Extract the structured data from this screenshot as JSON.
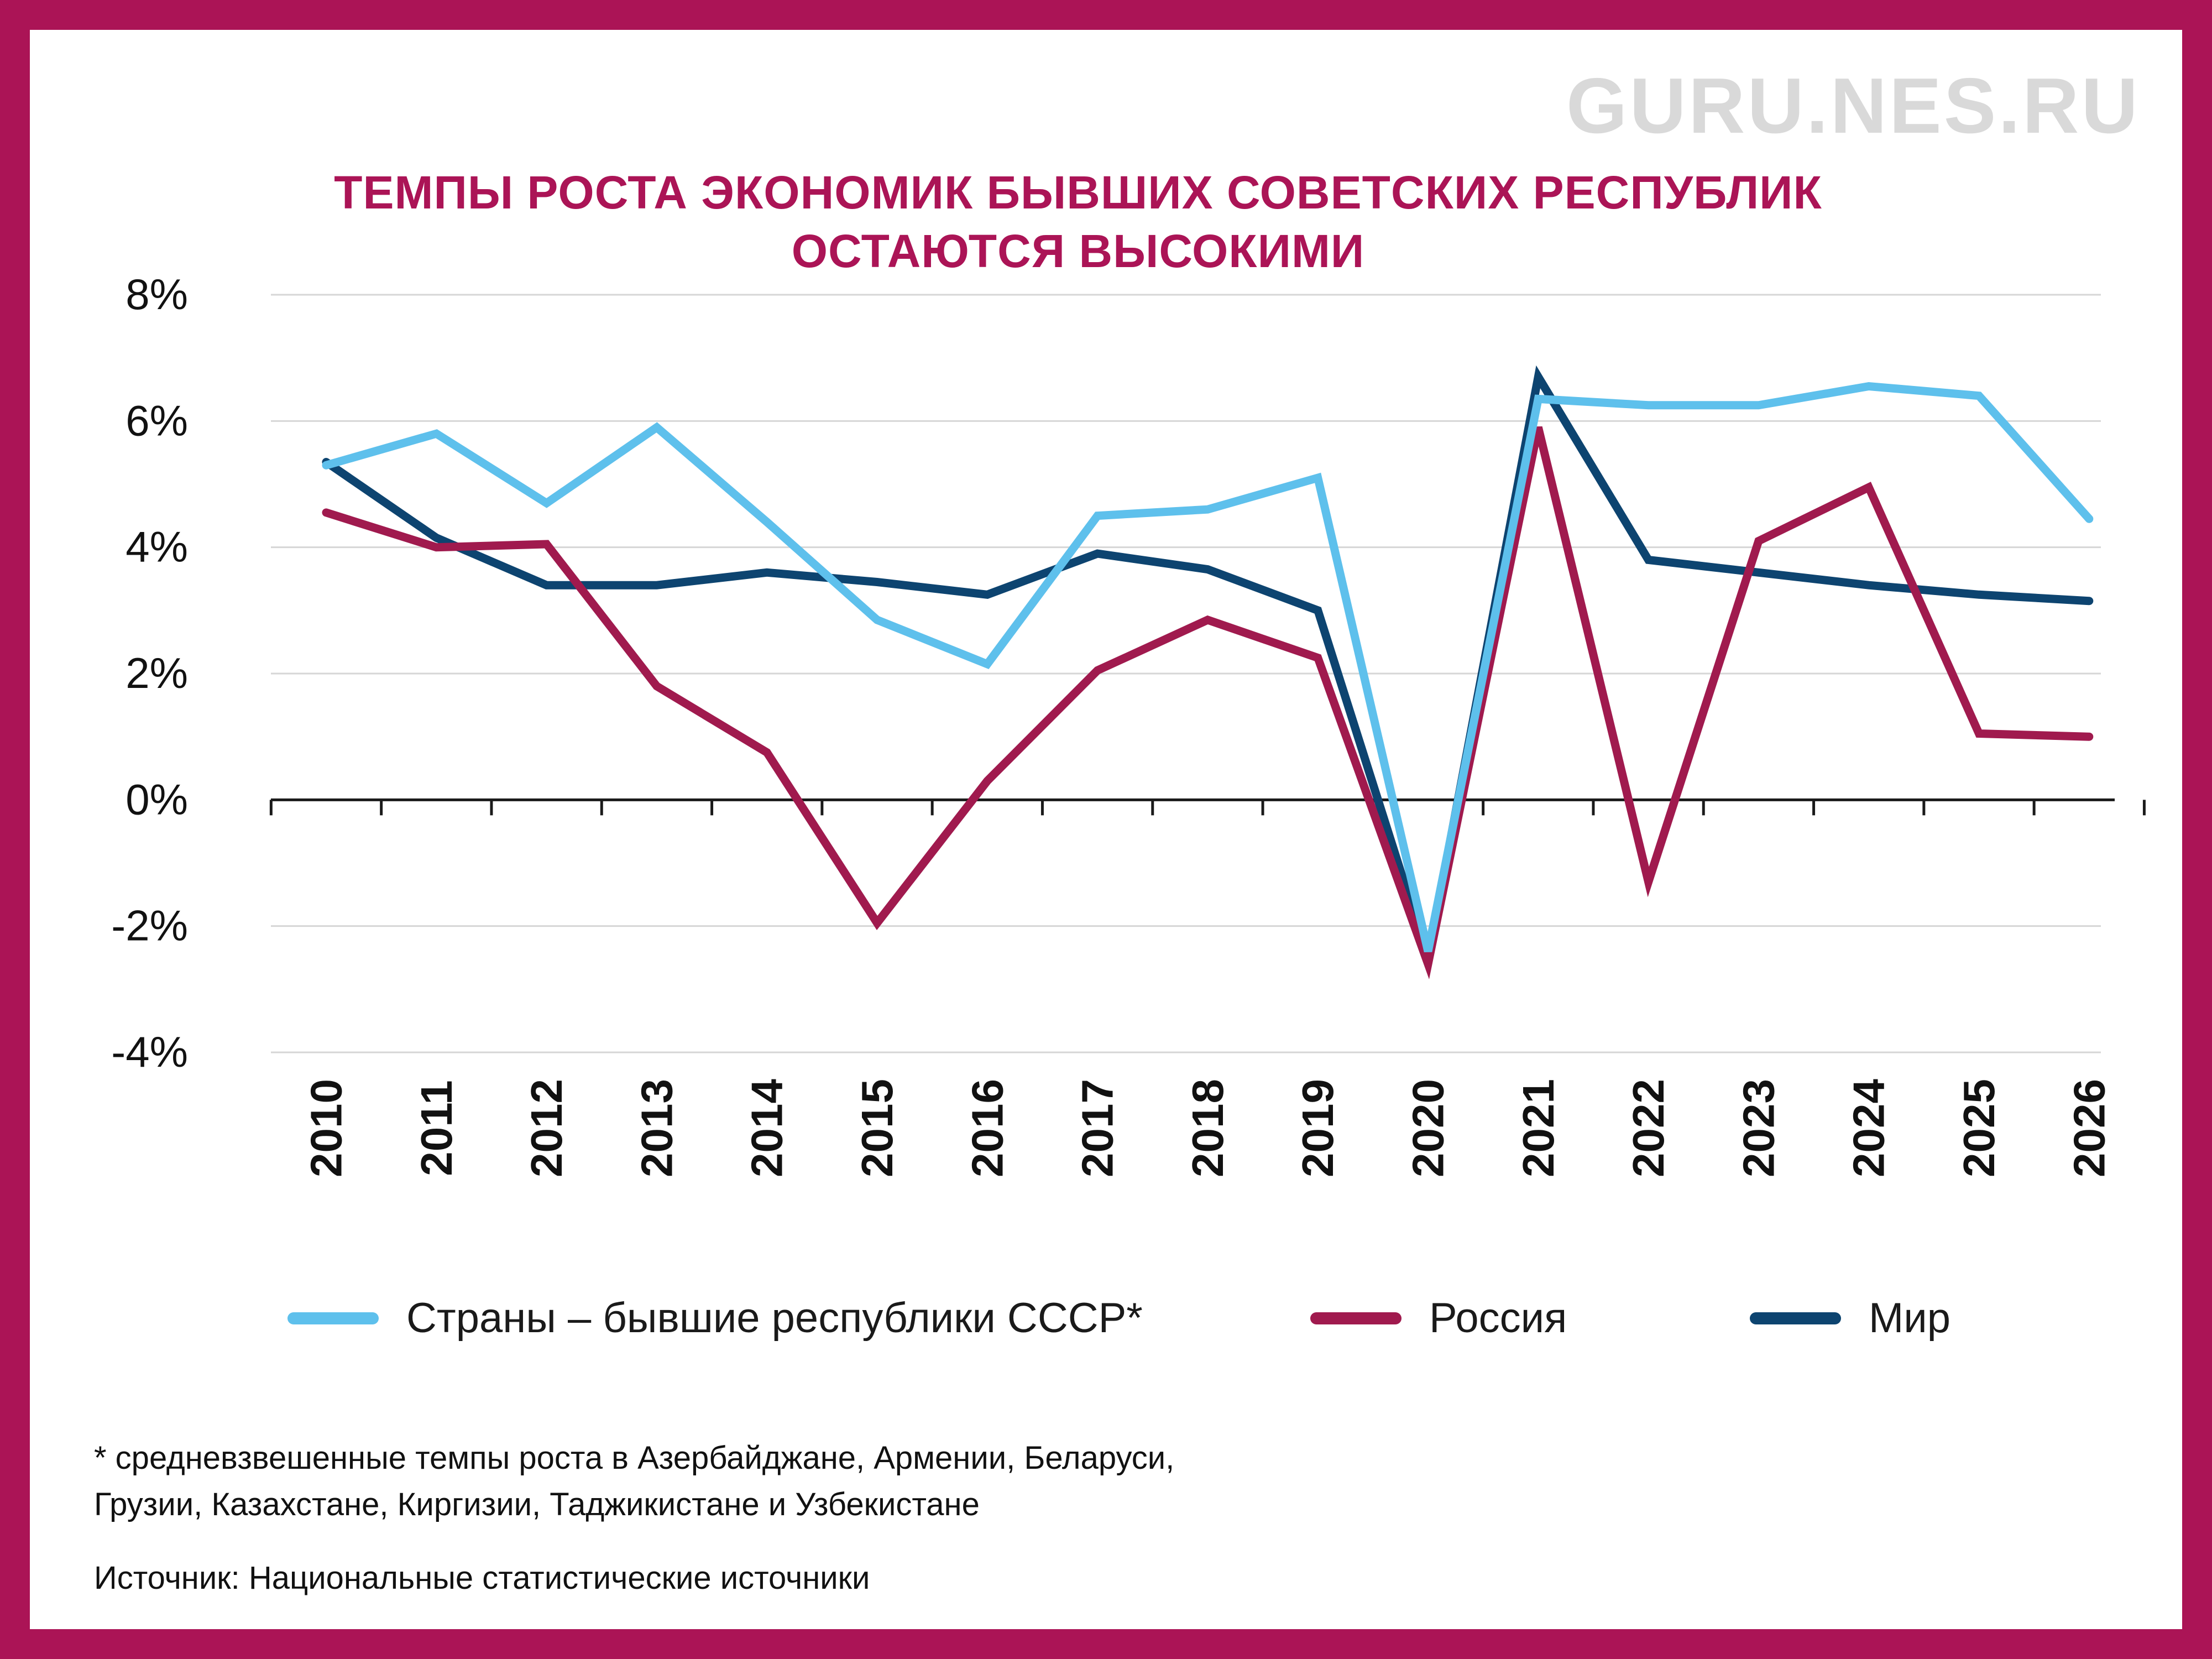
{
  "brand": "GURU.NES.RU",
  "footnote": {
    "line1": "* средневзвешенные темпы роста в Азербайджане, Армении, Беларуси,",
    "line2": "Грузии, Казахстане, Киргизии, Таджикистане и Узбекистане"
  },
  "source": "Источник: Национальные статистические источники",
  "colors": {
    "frame": "#ab1456",
    "title": "#ab1456",
    "brand": "#d9d9d9",
    "former_ussr": "#5ec0ec",
    "russia": "#a01a4e",
    "world": "#0d4470",
    "grid": "#d6d6d6",
    "axis": "#1a1a1a"
  },
  "chart_data": {
    "type": "line",
    "title_lines": [
      "ТЕМПЫ РОСТА ЭКОНОМИК БЫВШИХ СОВЕТСКИХ РЕСПУБЛИК",
      "ОСТАЮТСЯ ВЫСОКИМИ"
    ],
    "x": [
      "2010",
      "2011",
      "2012",
      "2013",
      "2014",
      "2015",
      "2016",
      "2017",
      "2018",
      "2019",
      "2020",
      "2021",
      "2022",
      "2023",
      "2024",
      "2025",
      "2026"
    ],
    "y_ticks": [
      8,
      6,
      4,
      2,
      0,
      -2,
      -4
    ],
    "y_tick_labels": [
      "8%",
      "6%",
      "4%",
      "2%",
      "0%",
      "-2%",
      "-4%"
    ],
    "ylim": [
      -4,
      8
    ],
    "grid": true,
    "legend_position": "bottom",
    "series": [
      {
        "name": "Страны – бывшие республики СССР*",
        "key": "former_ussr",
        "values": [
          5.3,
          5.8,
          4.7,
          5.9,
          4.4,
          2.85,
          2.15,
          4.5,
          4.6,
          5.1,
          -2.4,
          6.35,
          6.25,
          6.25,
          6.55,
          6.4,
          4.45
        ]
      },
      {
        "name": "Россия",
        "key": "russia",
        "values": [
          4.55,
          4.0,
          4.05,
          1.8,
          0.75,
          -1.95,
          0.3,
          2.05,
          2.85,
          2.25,
          -2.6,
          5.9,
          -1.3,
          4.1,
          4.95,
          1.05,
          1.0
        ]
      },
      {
        "name": "Мир",
        "key": "world",
        "values": [
          5.35,
          4.15,
          3.4,
          3.4,
          3.6,
          3.45,
          3.25,
          3.9,
          3.65,
          3.0,
          -2.5,
          6.7,
          3.8,
          3.6,
          3.4,
          3.25,
          3.15
        ]
      }
    ]
  }
}
